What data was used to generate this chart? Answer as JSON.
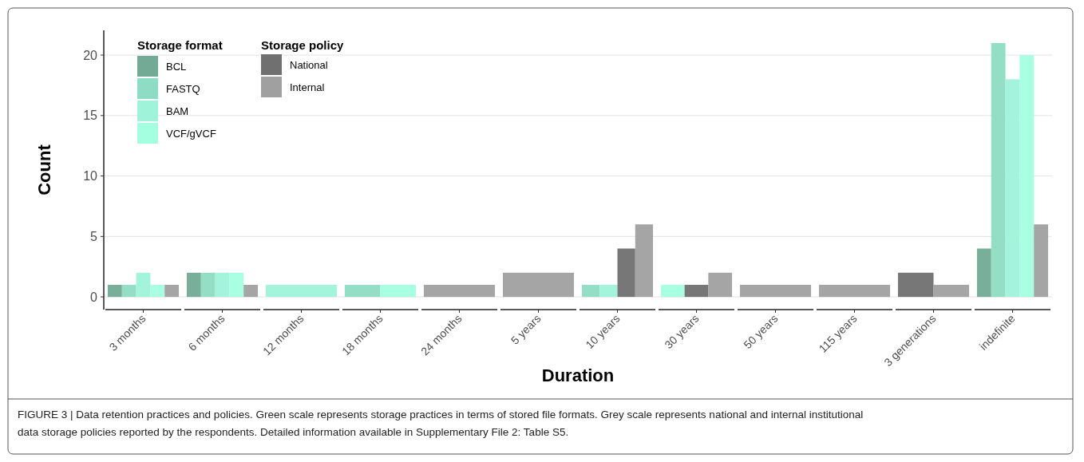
{
  "chart_data": {
    "type": "bar",
    "xlabel": "Duration",
    "ylabel": "Count",
    "legend_title": "Storage format",
    "categories": [
      "3 months",
      "6 months",
      "12 months",
      "18 months",
      "24 months",
      "5 years",
      "10 years",
      "30 years",
      "50 years",
      "115 years",
      "3 generations",
      "indefinite"
    ],
    "series": [
      {
        "name": "BCL",
        "color": "#72aa95",
        "values": [
          1,
          2,
          null,
          null,
          null,
          null,
          null,
          null,
          null,
          null,
          null,
          4
        ]
      },
      {
        "name": "FASTQ",
        "color": "#8edcc3",
        "values": [
          1,
          2,
          null,
          1,
          null,
          null,
          1,
          null,
          null,
          null,
          null,
          21
        ]
      },
      {
        "name": "BAM",
        "color": "#9ff3d9",
        "values": [
          2,
          2,
          1,
          null,
          null,
          null,
          1,
          null,
          null,
          null,
          null,
          18
        ]
      },
      {
        "name": "VCF/gVCF",
        "color": "#a3ffe0",
        "values": [
          1,
          2,
          null,
          1,
          null,
          null,
          null,
          1,
          null,
          null,
          null,
          20
        ]
      },
      {
        "name": "National",
        "color": "#707070",
        "values": [
          null,
          null,
          null,
          null,
          null,
          null,
          4,
          1,
          null,
          null,
          2,
          null
        ]
      },
      {
        "name": "Internal",
        "color": "#a0a0a0",
        "values": [
          1,
          1,
          null,
          null,
          1,
          2,
          6,
          2,
          1,
          1,
          1,
          6
        ]
      }
    ],
    "ylim": [
      -1.05,
      22.05
    ],
    "yticks": [
      0,
      5,
      10,
      15,
      20
    ],
    "grid": "y",
    "legend": "top left",
    "annotations": [
      "Storage policy",
      "FIGURE 3 | Data retention practices and policies. Green scale represents storage practices in terms of stored file formats. Grey scale represents national and internal institutional data storage policies reported by the respondents. Detailed information available in Supplementary File 2: Table S5."
    ]
  }
}
